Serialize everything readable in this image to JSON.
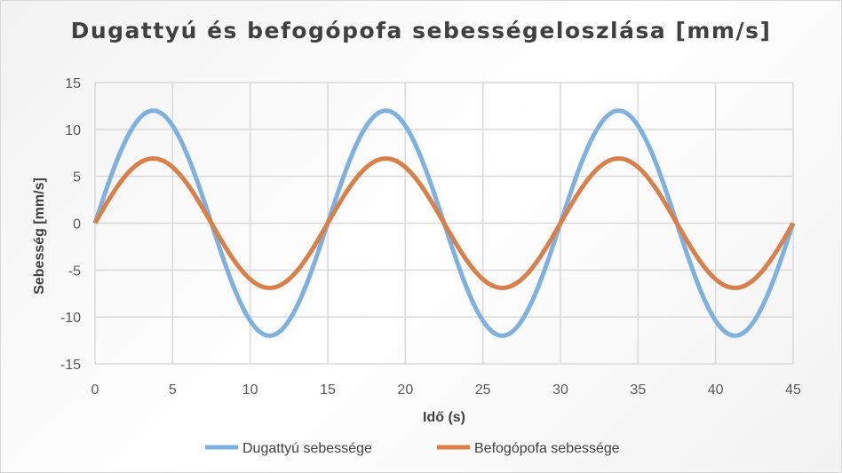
{
  "chart_data": {
    "type": "line",
    "title": "Dugattyú és befogópofa sebességeloszlása  [mm/s]",
    "xlabel": "Idő (s)",
    "ylabel": "Sebesség [mm/s]",
    "xlim": [
      0,
      45
    ],
    "ylim": [
      -15,
      15
    ],
    "x_ticks": [
      "0",
      "5",
      "10",
      "15",
      "20",
      "25",
      "30",
      "35",
      "40",
      "45"
    ],
    "y_ticks": [
      "15",
      "10",
      "5",
      "0",
      "-5",
      "-10",
      "-15"
    ],
    "grid": true,
    "legend_position": "bottom",
    "x": [
      0,
      1.875,
      3.75,
      5.625,
      7.5,
      9.375,
      11.25,
      13.125,
      15,
      16.875,
      18.75,
      20.625,
      22.5,
      24.375,
      26.25,
      28.125,
      30,
      31.875,
      33.75,
      35.625,
      37.5,
      39.375,
      41.25,
      43.125,
      45
    ],
    "series": [
      {
        "name": "Dugattyú sebessége",
        "color": "#7eb0e0",
        "function": "12*sin(2*pi*t/15)",
        "values": [
          0,
          8.49,
          12,
          8.49,
          0,
          -8.49,
          -12,
          -8.49,
          0,
          8.49,
          12,
          8.49,
          0,
          -8.49,
          -12,
          -8.49,
          0,
          8.49,
          12,
          8.49,
          0,
          -8.49,
          -12,
          -8.49,
          0
        ]
      },
      {
        "name": "Befogópofa sebessége",
        "color": "#d9804a",
        "function": "6.9*sin(2*pi*t/15)",
        "values": [
          0,
          4.88,
          6.9,
          4.88,
          0,
          -4.88,
          -6.9,
          -4.88,
          0,
          4.88,
          6.9,
          4.88,
          0,
          -4.88,
          -6.9,
          -4.88,
          0,
          4.88,
          6.9,
          4.88,
          0,
          -4.88,
          -6.9,
          -4.88,
          0
        ]
      }
    ]
  },
  "legend": {
    "items": [
      {
        "label": "Dugattyú sebessége",
        "color": "#7eb0e0"
      },
      {
        "label": "Befogópofa sebessége",
        "color": "#d9804a"
      }
    ]
  }
}
